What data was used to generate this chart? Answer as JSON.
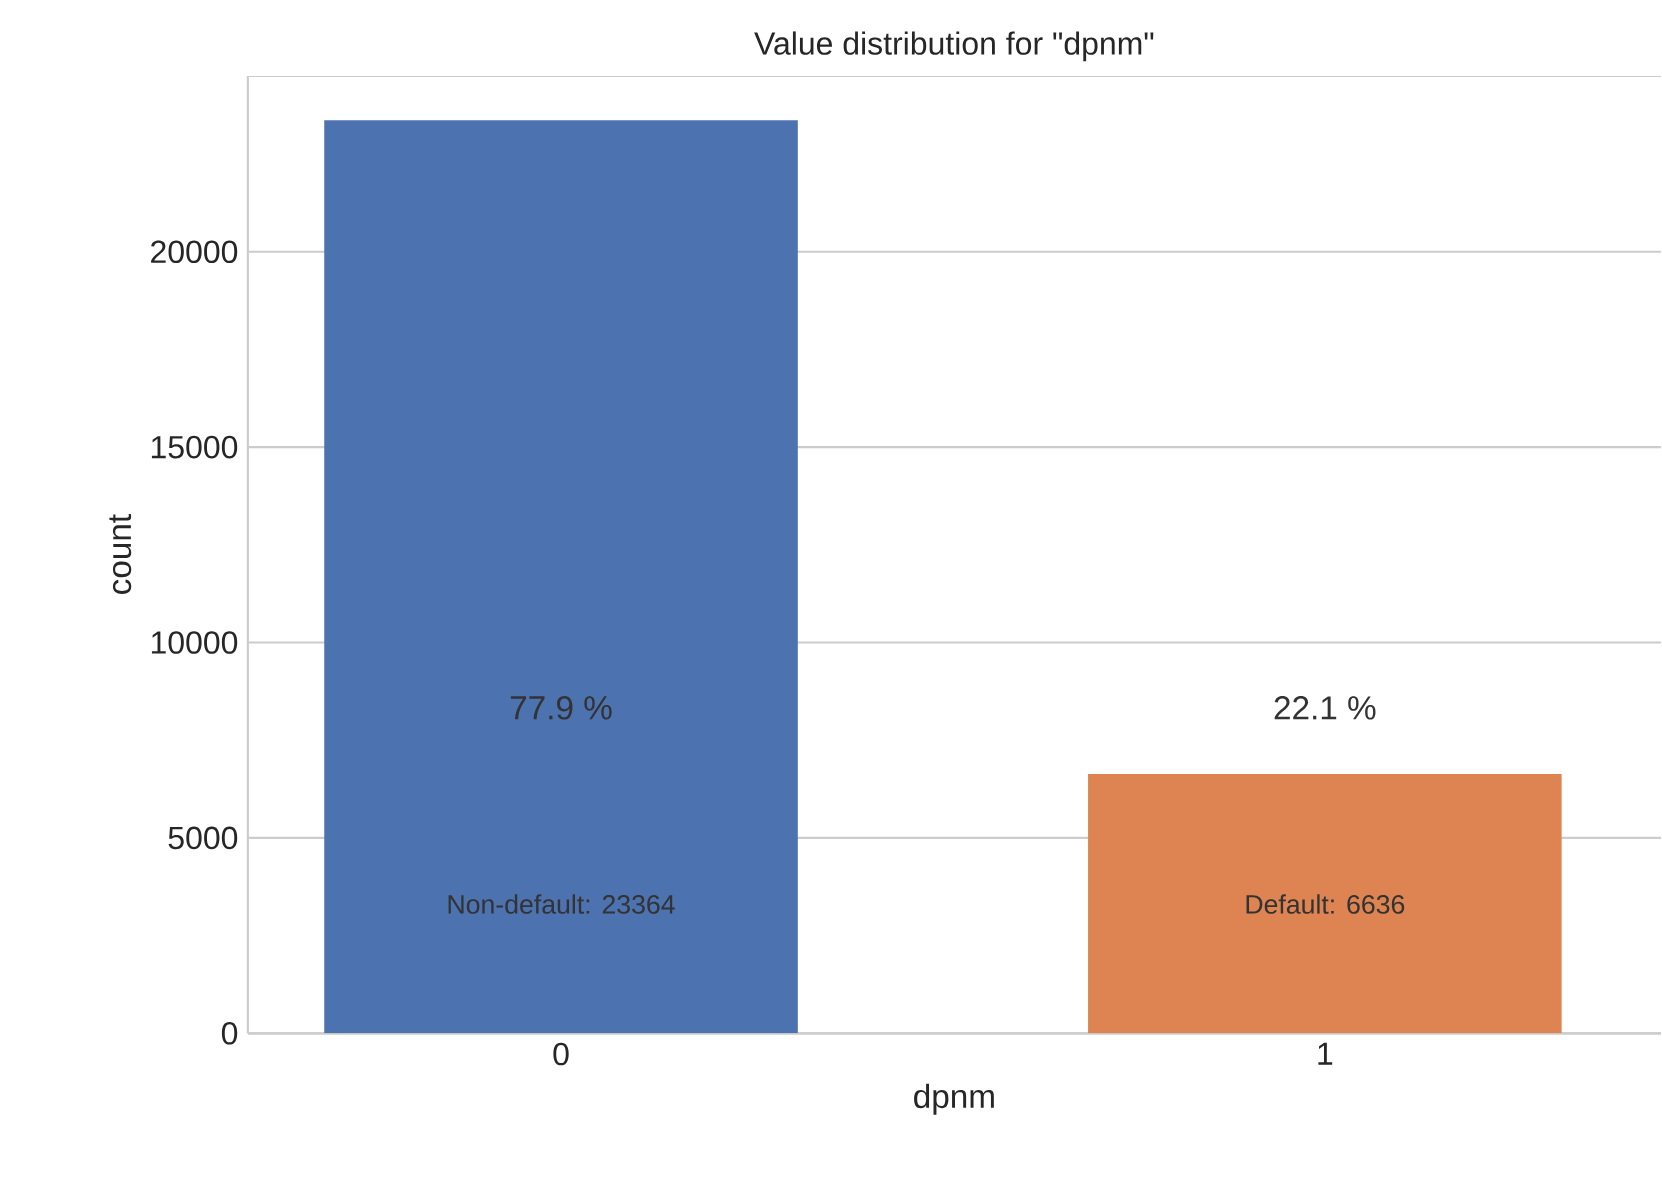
{
  "chart_data": {
    "type": "bar",
    "title": "Value distribution for \"dpnm\"",
    "xlabel": "dpnm",
    "ylabel": "count",
    "categories": [
      "0",
      "1"
    ],
    "values": [
      23364,
      6636
    ],
    "colors": [
      "#4c72b0",
      "#dd8452"
    ],
    "ylim": [
      0,
      24500
    ],
    "yticks": [
      0,
      5000,
      10000,
      15000,
      20000
    ],
    "grid": "y",
    "annotations": [
      "77.9 %",
      "22.1 %",
      "Non-default: 23364",
      "Default: 6636"
    ]
  }
}
